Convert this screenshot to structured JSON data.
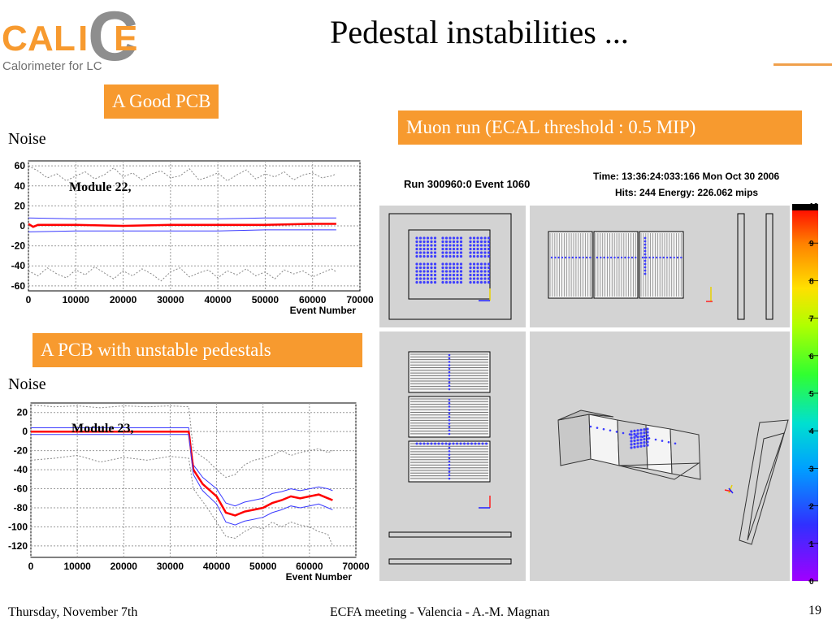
{
  "logo": {
    "letters": [
      "C",
      "A",
      "L",
      "I",
      "C",
      "E"
    ],
    "subtitle": "Calorimeter for LC"
  },
  "slide": {
    "title": "Pedestal instabilities ...",
    "good_pcb_label": "A Good PCB",
    "bad_pcb_label": "A PCB with unstable pedestals",
    "muon_label": "Muon run (ECAL threshold : 0.5 MIP)",
    "noise_label_1": "Noise",
    "noise_label_2": "Noise"
  },
  "footer": {
    "date": "Thursday, November 7th",
    "meeting": "ECFA meeting - Valencia - A.-M. Magnan",
    "page": "19"
  },
  "event_display": {
    "run": "Run 300960:0 Event 1060",
    "time": "Time: 13:36:24:033:166 Mon Oct 30 2006",
    "hits": "Hits: 244  Energy: 226.062 mips",
    "colorbar_ticks": [
      "10",
      "9",
      "8",
      "7",
      "6",
      "5",
      "4",
      "3",
      "2",
      "1",
      "0"
    ],
    "colorbar_range": [
      0,
      10
    ]
  },
  "chart_data": [
    {
      "type": "line",
      "annotation": "Module 22,",
      "xlabel": "Event Number",
      "ylabel": "",
      "xlim": [
        0,
        70000
      ],
      "ylim": [
        -65,
        65
      ],
      "xticks": [
        0,
        10000,
        20000,
        30000,
        40000,
        50000,
        60000,
        70000
      ],
      "xtick_labels": [
        "0",
        "10000",
        "20000",
        "30000",
        "40000",
        "50000",
        "60000",
        "70000"
      ],
      "yticks": [
        60,
        40,
        20,
        0,
        -20,
        -40,
        -60
      ],
      "ytick_labels": [
        "60",
        "40",
        "20",
        "0",
        "-20",
        "-40",
        "-60"
      ],
      "grid": true,
      "series": [
        {
          "color": "#888888",
          "style": "dotted",
          "x": [
            0,
            2000,
            4000,
            6000,
            8000,
            10000,
            12000,
            14000,
            16000,
            18000,
            20000,
            22000,
            24000,
            26000,
            28000,
            30000,
            32000,
            34000,
            36000,
            38000,
            40000,
            42000,
            44000,
            46000,
            48000,
            50000,
            52000,
            54000,
            56000,
            58000,
            60000,
            62000,
            64000,
            65000
          ],
          "y": [
            60,
            55,
            48,
            52,
            45,
            50,
            54,
            47,
            51,
            58,
            49,
            53,
            46,
            52,
            55,
            48,
            50,
            57,
            46,
            49,
            53,
            45,
            51,
            56,
            47,
            52,
            49,
            54,
            46,
            51,
            53,
            48,
            50,
            52
          ]
        },
        {
          "color": "#3a3aff",
          "style": "solid",
          "x": [
            0,
            10000,
            20000,
            30000,
            40000,
            50000,
            60000,
            65000
          ],
          "y": [
            8,
            7,
            7,
            7,
            7,
            8,
            8,
            8
          ]
        },
        {
          "color": "#ff0000",
          "style": "bold",
          "x": [
            0,
            1000,
            2000,
            10000,
            20000,
            30000,
            40000,
            50000,
            60000,
            65000
          ],
          "y": [
            2,
            -1,
            1,
            1,
            0,
            1,
            1,
            1,
            2,
            2
          ]
        },
        {
          "color": "#3a3aff",
          "style": "solid",
          "x": [
            0,
            10000,
            20000,
            30000,
            40000,
            50000,
            60000,
            65000
          ],
          "y": [
            -6,
            -5,
            -5,
            -5,
            -5,
            -4,
            -4,
            -4
          ]
        },
        {
          "color": "#888888",
          "style": "dotted",
          "x": [
            0,
            2000,
            4000,
            6000,
            8000,
            10000,
            12000,
            14000,
            16000,
            18000,
            20000,
            22000,
            24000,
            26000,
            28000,
            30000,
            32000,
            34000,
            36000,
            38000,
            40000,
            42000,
            44000,
            46000,
            48000,
            50000,
            52000,
            54000,
            56000,
            58000,
            60000,
            62000,
            64000,
            65000
          ],
          "y": [
            -45,
            -50,
            -42,
            -48,
            -52,
            -44,
            -49,
            -41,
            -47,
            -53,
            -45,
            -50,
            -43,
            -48,
            -55,
            -46,
            -42,
            -51,
            -47,
            -44,
            -52,
            -45,
            -49,
            -43,
            -50,
            -46,
            -53,
            -44,
            -48,
            -45,
            -51,
            -47,
            -43,
            -46
          ]
        }
      ]
    },
    {
      "type": "line",
      "annotation": "Module 23,",
      "xlabel": "Event Number",
      "ylabel": "",
      "xlim": [
        0,
        70000
      ],
      "ylim": [
        -132,
        30
      ],
      "xticks": [
        0,
        10000,
        20000,
        30000,
        40000,
        50000,
        60000,
        70000
      ],
      "xtick_labels": [
        "0",
        "10000",
        "20000",
        "30000",
        "40000",
        "50000",
        "60000",
        "70000"
      ],
      "yticks": [
        20,
        0,
        -20,
        -40,
        -60,
        -80,
        -100,
        -120
      ],
      "ytick_labels": [
        "20",
        "0",
        "-20",
        "-40",
        "-60",
        "-80",
        "-100",
        "-120"
      ],
      "grid": true,
      "series": [
        {
          "color": "#888888",
          "style": "dotted",
          "x": [
            0,
            5000,
            10000,
            15000,
            20000,
            25000,
            30000,
            34000,
            35000,
            38000,
            40000,
            42000,
            44000,
            46000,
            48000,
            50000,
            52000,
            54000,
            56000,
            58000,
            60000,
            62000,
            64000,
            65000
          ],
          "y": [
            28,
            26,
            27,
            25,
            27,
            26,
            27,
            26,
            -20,
            -30,
            -40,
            -48,
            -45,
            -35,
            -30,
            -28,
            -25,
            -20,
            -25,
            -22,
            -20,
            -18,
            -22,
            -20
          ]
        },
        {
          "color": "#888888",
          "style": "dotted",
          "x": [
            0,
            5000,
            10000,
            15000,
            20000,
            25000,
            30000,
            34000,
            35000,
            38000,
            40000,
            42000,
            44000,
            46000,
            48000,
            50000,
            52000,
            54000,
            56000,
            58000,
            60000,
            62000,
            64000,
            65000
          ],
          "y": [
            -30,
            -28,
            -25,
            -32,
            -27,
            -30,
            -26,
            -28,
            -60,
            -80,
            -95,
            -110,
            -112,
            -105,
            -100,
            -102,
            -95,
            -100,
            -95,
            -98,
            -100,
            -105,
            -108,
            -120
          ]
        },
        {
          "color": "#3a3aff",
          "style": "solid",
          "x": [
            0,
            10000,
            20000,
            30000,
            34000,
            35000,
            37000,
            40000,
            42000,
            44000,
            46000,
            48000,
            50000,
            52000,
            54000,
            56000,
            58000,
            60000,
            62000,
            64000,
            65000
          ],
          "y": [
            4,
            4,
            4,
            4,
            4,
            -35,
            -48,
            -60,
            -75,
            -78,
            -74,
            -72,
            -70,
            -65,
            -63,
            -60,
            -62,
            -60,
            -58,
            -60,
            -62
          ]
        },
        {
          "color": "#ff0000",
          "style": "bold",
          "x": [
            0,
            10000,
            20000,
            30000,
            34000,
            35000,
            37000,
            40000,
            42000,
            44000,
            46000,
            48000,
            50000,
            52000,
            54000,
            56000,
            58000,
            60000,
            62000,
            64000,
            65000
          ],
          "y": [
            0,
            0,
            0,
            0,
            0,
            -40,
            -55,
            -68,
            -85,
            -88,
            -84,
            -82,
            -80,
            -75,
            -72,
            -68,
            -70,
            -68,
            -66,
            -70,
            -72
          ]
        },
        {
          "color": "#3a3aff",
          "style": "solid",
          "x": [
            0,
            10000,
            20000,
            30000,
            34000,
            35000,
            37000,
            40000,
            42000,
            44000,
            46000,
            48000,
            50000,
            52000,
            54000,
            56000,
            58000,
            60000,
            62000,
            64000,
            65000
          ],
          "y": [
            -3,
            -3,
            -3,
            -3,
            -3,
            -45,
            -62,
            -76,
            -95,
            -98,
            -94,
            -92,
            -90,
            -85,
            -82,
            -78,
            -80,
            -78,
            -76,
            -80,
            -82
          ]
        }
      ]
    }
  ]
}
